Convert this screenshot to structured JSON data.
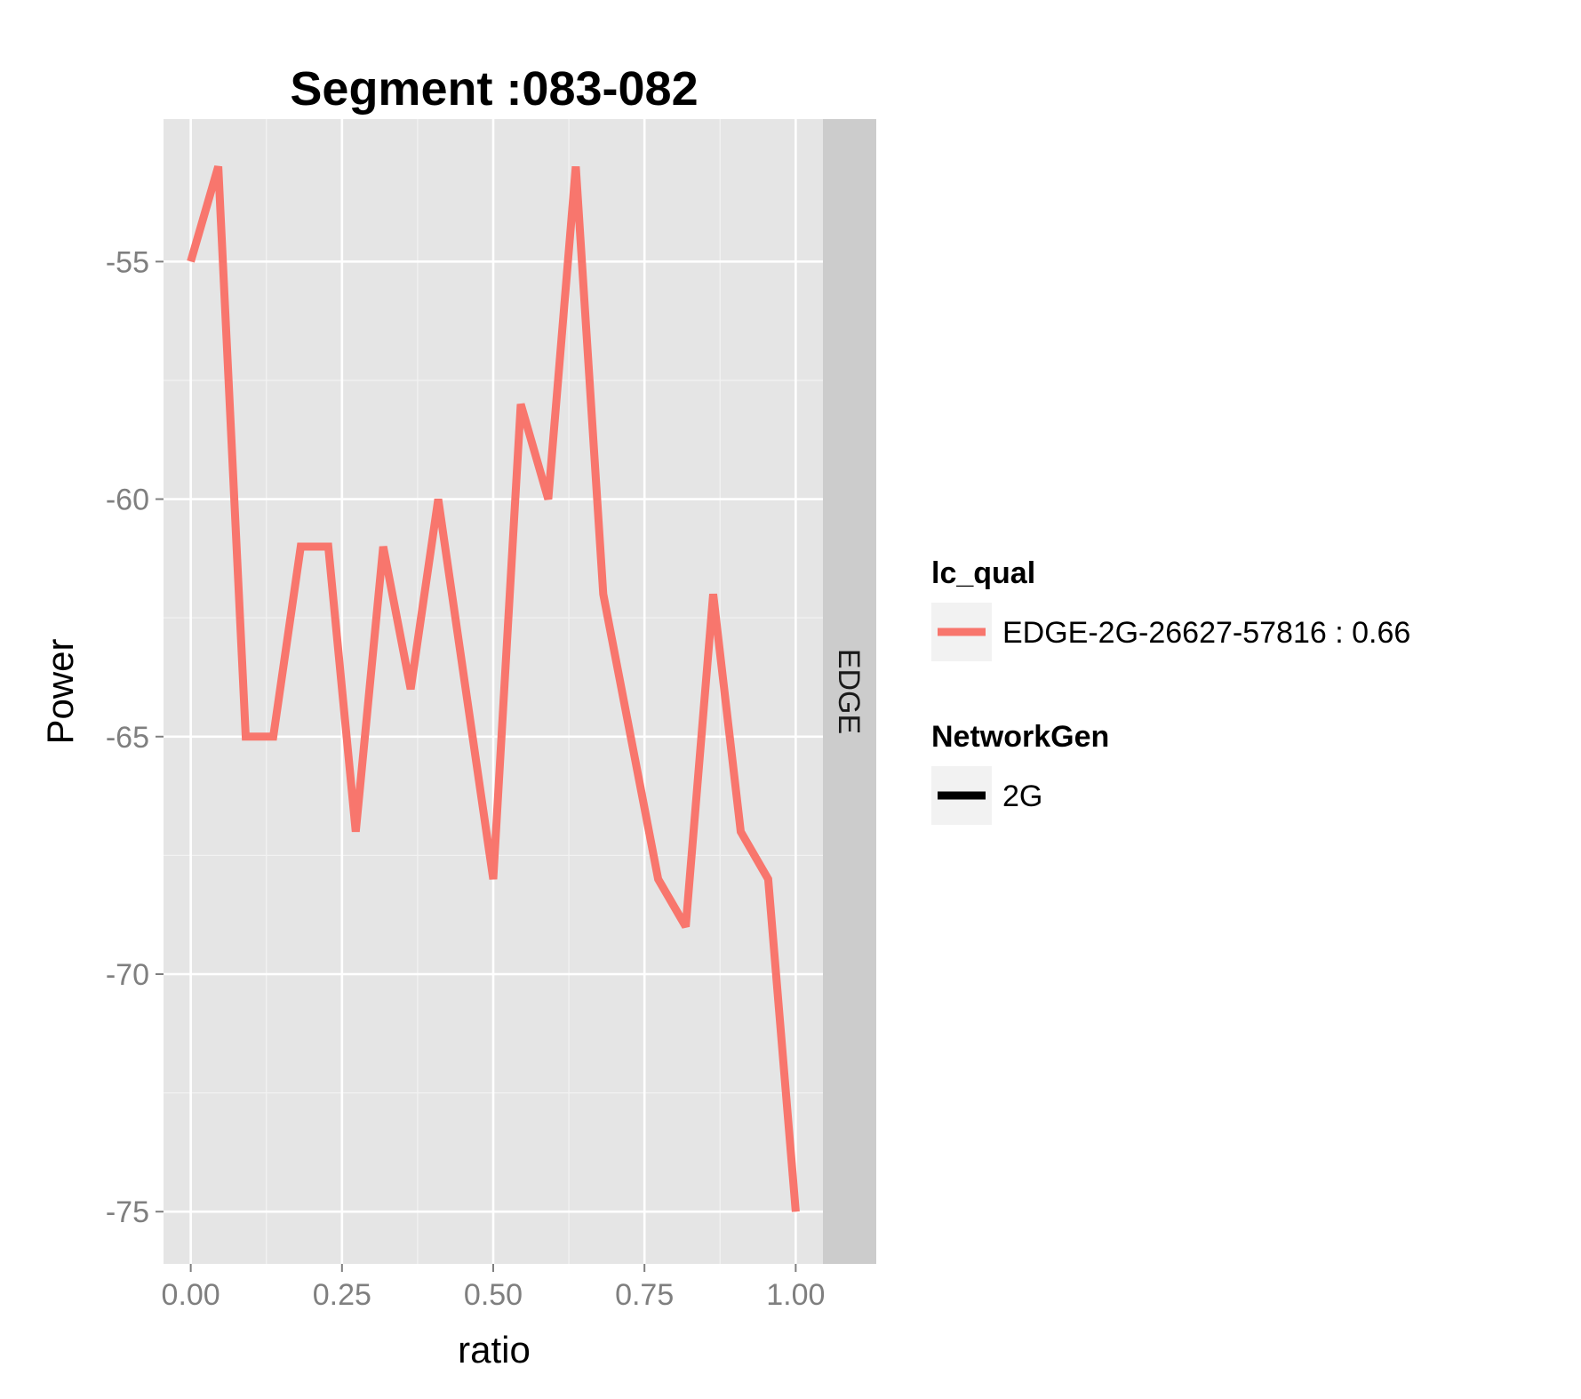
{
  "chart_data": {
    "type": "line",
    "title": "Segment :083-082",
    "xlabel": "ratio",
    "ylabel": "Power",
    "xlim": [
      -0.045,
      1.045
    ],
    "ylim": [
      -76.1,
      -52.0
    ],
    "x_ticks": [
      0.0,
      0.25,
      0.5,
      0.75,
      1.0
    ],
    "x_tick_labels": [
      "0.00",
      "0.25",
      "0.50",
      "0.75",
      "1.00"
    ],
    "y_ticks": [
      -55,
      -60,
      -65,
      -70,
      -75
    ],
    "y_tick_labels": [
      "-55",
      "-60",
      "-65",
      "-70",
      "-75"
    ],
    "grid": true,
    "facet_label": "EDGE",
    "series": [
      {
        "name": "EDGE-2G-26627-57816 : 0.66",
        "color": "#F8766D",
        "x": [
          0.0,
          0.0455,
          0.0909,
          0.1364,
          0.1818,
          0.2273,
          0.2727,
          0.3182,
          0.3636,
          0.4091,
          0.4545,
          0.5,
          0.5455,
          0.5909,
          0.6364,
          0.6818,
          0.7273,
          0.7727,
          0.8182,
          0.8636,
          0.9091,
          0.9545,
          1.0
        ],
        "y": [
          -55,
          -53,
          -65,
          -65,
          -61,
          -61,
          -67,
          -61,
          -64,
          -60,
          -64,
          -68,
          -58,
          -60,
          -53,
          -62,
          -65,
          -68,
          -69,
          -62,
          -67,
          -68,
          -75
        ]
      }
    ],
    "legend": {
      "position": "right",
      "groups": [
        {
          "title": "lc_qual",
          "entries": [
            {
              "label": "EDGE-2G-26627-57816 : 0.66",
              "color": "#F8766D"
            }
          ]
        },
        {
          "title": "NetworkGen",
          "entries": [
            {
              "label": "2G",
              "color": "#000000"
            }
          ]
        }
      ]
    }
  },
  "colors": {
    "panel_background": "#E5E5E5",
    "grid_major": "#FFFFFF",
    "grid_minor": "#F2F2F2",
    "strip_background": "#CCCCCC",
    "tick_text": "#7F7F7F",
    "legend_key_background": "#F2F2F2"
  }
}
